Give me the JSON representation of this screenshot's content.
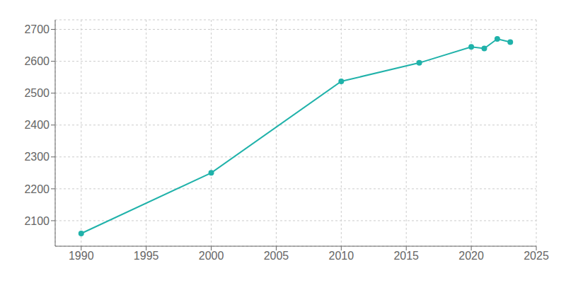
{
  "chart_data": {
    "type": "line",
    "x": [
      1990,
      2000,
      2010,
      2016,
      2020,
      2021,
      2022,
      2023
    ],
    "values": [
      2060,
      2250,
      2537,
      2595,
      2645,
      2640,
      2670,
      2660
    ],
    "color": "#20b2aa",
    "marker": "circle",
    "xlim": [
      1988,
      2025
    ],
    "ylim": [
      2020,
      2730
    ],
    "xticks": [
      1990,
      1995,
      2000,
      2005,
      2010,
      2015,
      2020,
      2025
    ],
    "yticks": [
      2100,
      2200,
      2300,
      2400,
      2500,
      2600,
      2700
    ],
    "grid": true
  }
}
